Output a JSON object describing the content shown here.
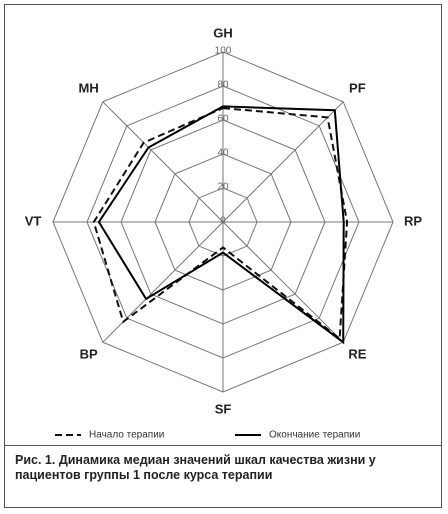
{
  "chart_data": {
    "type": "radar",
    "categories": [
      "GH",
      "PF",
      "RP",
      "RE",
      "SF",
      "BP",
      "VT",
      "MH"
    ],
    "series": [
      {
        "name": "Начало терапии",
        "color": "#111111",
        "dash": true,
        "values": [
          67,
          87,
          73,
          97,
          15,
          83,
          76,
          66
        ]
      },
      {
        "name": "Окончание терапии",
        "color": "#000000",
        "dash": false,
        "values": [
          68,
          93,
          71,
          100,
          18,
          64,
          73,
          62
        ]
      }
    ],
    "ylim": [
      0,
      100
    ],
    "yticks": [
      0,
      20,
      40,
      60,
      80,
      100
    ],
    "grid": true,
    "caption": "Рис. 1. Динамика медиан значений шкал качества жизни у пациентов группы 1 после курса терапии"
  }
}
